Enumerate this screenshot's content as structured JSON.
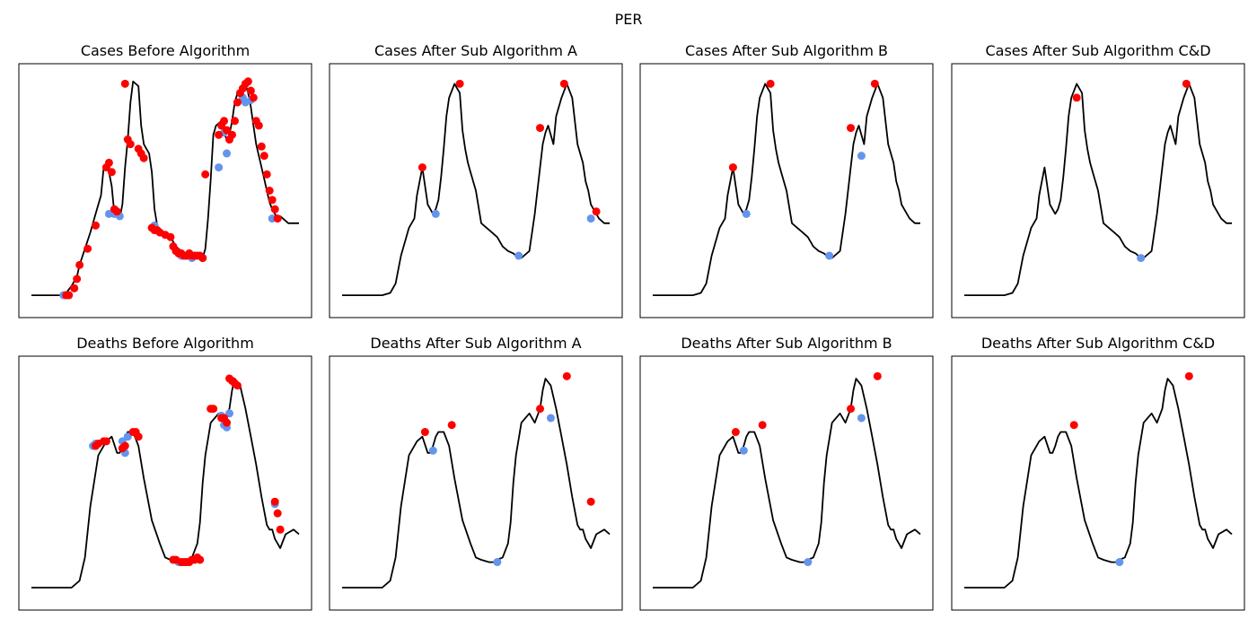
{
  "figure": {
    "suptitle": "PER"
  },
  "colors": {
    "line": "#000000",
    "minima": "#6495ed",
    "maxima": "#ff0000",
    "background": "#ffffff"
  },
  "chart_data": [
    {
      "type": "line",
      "title": "Cases Before Algorithm",
      "xlim": [
        0,
        100
      ],
      "ylim": [
        0,
        100
      ],
      "x": [
        0,
        10,
        12,
        13,
        15,
        17,
        18,
        20,
        22,
        24,
        26,
        27,
        28,
        29,
        30,
        31,
        32,
        33,
        34,
        35,
        36,
        37,
        38,
        40,
        41,
        42,
        43,
        44,
        45,
        46,
        47,
        48,
        50,
        52,
        53,
        54,
        55,
        56,
        57,
        58,
        59,
        60,
        61,
        62,
        63,
        64,
        65,
        66,
        67,
        68,
        69,
        70,
        71,
        72,
        73,
        74,
        75,
        76,
        77,
        78,
        79,
        80,
        81,
        82,
        83,
        84,
        85,
        86,
        87,
        88,
        89,
        90,
        91,
        92,
        93,
        94,
        95,
        96,
        97,
        98,
        99,
        100
      ],
      "y": [
        5,
        5,
        5,
        6,
        9,
        13,
        18,
        25,
        32,
        40,
        48,
        60,
        61,
        58,
        52,
        40,
        41,
        38,
        44,
        60,
        72,
        88,
        97,
        95,
        78,
        70,
        68,
        66,
        58,
        42,
        35,
        33,
        32,
        30,
        28,
        26,
        25,
        24,
        23,
        23,
        22,
        22,
        22,
        22,
        21,
        21,
        25,
        38,
        55,
        74,
        78,
        79,
        80,
        75,
        72,
        74,
        80,
        88,
        92,
        93,
        95,
        96,
        92,
        86,
        78,
        70,
        65,
        60,
        55,
        50,
        45,
        42,
        40,
        38,
        39,
        38,
        37,
        36,
        36,
        36,
        36,
        36
      ],
      "minima_x": [
        12,
        13,
        16,
        29,
        31,
        33,
        46,
        56,
        58,
        60,
        61,
        64,
        70,
        72,
        73,
        79,
        80,
        82,
        90
      ],
      "minima_y": [
        5,
        5,
        8,
        40,
        40,
        39,
        35,
        22,
        22,
        21,
        22,
        21,
        60,
        75,
        66,
        90,
        88,
        89,
        38
      ],
      "maxima_x": [
        13,
        14,
        16,
        17,
        18,
        21,
        24,
        28,
        29,
        30,
        31,
        32,
        35,
        36,
        37,
        40,
        41,
        42,
        45,
        46,
        47,
        48,
        50,
        52,
        53,
        54,
        55,
        56,
        57,
        58,
        59,
        60,
        61,
        62,
        63,
        64,
        65,
        70,
        71,
        72,
        73,
        74,
        75,
        76,
        77,
        78,
        79,
        80,
        81,
        82,
        83,
        84,
        85,
        86,
        87,
        88,
        89,
        90,
        91,
        92
      ],
      "maxima_y": [
        5,
        5,
        8,
        12,
        18,
        25,
        35,
        60,
        62,
        58,
        42,
        41,
        96,
        72,
        70,
        68,
        66,
        64,
        34,
        33,
        33,
        32,
        31,
        30,
        26,
        24,
        23,
        23,
        22,
        22,
        23,
        22,
        22,
        22,
        22,
        21,
        57,
        74,
        78,
        80,
        76,
        72,
        74,
        80,
        88,
        92,
        94,
        96,
        97,
        93,
        90,
        80,
        78,
        69,
        65,
        57,
        50,
        46,
        42,
        38
      ],
      "grid": false
    },
    {
      "type": "line",
      "title": "Cases After Sub Algorithm A",
      "xlim": [
        0,
        100
      ],
      "ylim": [
        0,
        100
      ],
      "x": [
        0,
        10,
        15,
        18,
        20,
        22,
        25,
        27,
        28,
        30,
        32,
        34,
        35,
        36,
        37,
        38,
        39,
        40,
        42,
        44,
        45,
        46,
        47,
        48,
        50,
        52,
        54,
        56,
        58,
        60,
        62,
        64,
        65,
        66,
        67,
        68,
        70,
        72,
        74,
        75,
        76,
        77,
        78,
        79,
        80,
        81,
        82,
        84,
        86,
        88,
        90,
        91,
        92,
        93,
        94,
        95,
        96,
        98,
        100
      ],
      "y": [
        5,
        5,
        5,
        6,
        10,
        22,
        34,
        38,
        48,
        60,
        44,
        40,
        42,
        46,
        56,
        68,
        82,
        90,
        96,
        92,
        76,
        68,
        62,
        58,
        50,
        36,
        34,
        32,
        30,
        26,
        24,
        23,
        22,
        22,
        21,
        22,
        24,
        40,
        60,
        70,
        75,
        78,
        74,
        70,
        82,
        86,
        90,
        96,
        90,
        70,
        62,
        54,
        50,
        44,
        42,
        40,
        38,
        36,
        36
      ],
      "minima_x": [
        35,
        66,
        93
      ],
      "minima_y": [
        40,
        22,
        38
      ],
      "maxima_x": [
        30,
        44,
        74,
        83,
        95
      ],
      "maxima_y": [
        60,
        96,
        77,
        96,
        41
      ],
      "grid": false
    },
    {
      "type": "line",
      "title": "Cases After Sub Algorithm B",
      "xlim": [
        0,
        100
      ],
      "ylim": [
        0,
        100
      ],
      "x": [
        0,
        10,
        15,
        18,
        20,
        22,
        25,
        27,
        28,
        30,
        32,
        34,
        35,
        36,
        37,
        38,
        39,
        40,
        42,
        44,
        45,
        46,
        47,
        48,
        50,
        52,
        54,
        56,
        58,
        60,
        62,
        64,
        65,
        66,
        67,
        68,
        70,
        72,
        74,
        75,
        76,
        77,
        78,
        79,
        80,
        81,
        82,
        84,
        86,
        88,
        90,
        91,
        92,
        93,
        94,
        95,
        96,
        98,
        100
      ],
      "y": [
        5,
        5,
        5,
        6,
        10,
        22,
        34,
        38,
        48,
        60,
        44,
        40,
        42,
        46,
        56,
        68,
        82,
        90,
        96,
        92,
        76,
        68,
        62,
        58,
        50,
        36,
        34,
        32,
        30,
        26,
        24,
        23,
        22,
        22,
        21,
        22,
        24,
        40,
        60,
        70,
        75,
        78,
        74,
        70,
        82,
        86,
        90,
        96,
        90,
        70,
        62,
        54,
        50,
        44,
        42,
        40,
        38,
        36,
        36
      ],
      "minima_x": [
        35,
        66,
        78
      ],
      "minima_y": [
        40,
        22,
        65
      ],
      "maxima_x": [
        30,
        44,
        74,
        83
      ],
      "maxima_y": [
        60,
        96,
        77,
        96
      ],
      "grid": false
    },
    {
      "type": "line",
      "title": "Cases After Sub Algorithm C&D",
      "xlim": [
        0,
        100
      ],
      "ylim": [
        0,
        100
      ],
      "x": [
        0,
        10,
        15,
        18,
        20,
        22,
        25,
        27,
        28,
        30,
        32,
        34,
        35,
        36,
        37,
        38,
        39,
        40,
        42,
        44,
        45,
        46,
        47,
        48,
        50,
        52,
        54,
        56,
        58,
        60,
        62,
        64,
        65,
        66,
        67,
        68,
        70,
        72,
        74,
        75,
        76,
        77,
        78,
        79,
        80,
        81,
        82,
        84,
        86,
        88,
        90,
        91,
        92,
        93,
        94,
        95,
        96,
        98,
        100
      ],
      "y": [
        5,
        5,
        5,
        6,
        10,
        22,
        34,
        38,
        48,
        60,
        44,
        40,
        42,
        46,
        56,
        68,
        82,
        90,
        96,
        92,
        76,
        68,
        62,
        58,
        50,
        36,
        34,
        32,
        30,
        26,
        24,
        23,
        22,
        22,
        21,
        22,
        24,
        40,
        60,
        70,
        75,
        78,
        74,
        70,
        82,
        86,
        90,
        96,
        90,
        70,
        62,
        54,
        50,
        44,
        42,
        40,
        38,
        36,
        36
      ],
      "minima_x": [
        66
      ],
      "minima_y": [
        21
      ],
      "maxima_x": [
        42,
        83
      ],
      "maxima_y": [
        90,
        96
      ],
      "grid": false
    },
    {
      "type": "line",
      "title": "Deaths Before Algorithm",
      "xlim": [
        0,
        100
      ],
      "ylim": [
        0,
        100
      ],
      "x": [
        0,
        10,
        15,
        18,
        20,
        22,
        25,
        28,
        30,
        32,
        33,
        34,
        35,
        36,
        38,
        40,
        42,
        45,
        48,
        50,
        52,
        55,
        57,
        58,
        60,
        62,
        63,
        64,
        65,
        67,
        70,
        72,
        74,
        75,
        76,
        78,
        80,
        82,
        84,
        86,
        88,
        89,
        90,
        91,
        92,
        93,
        95,
        98,
        100
      ],
      "y": [
        5,
        5,
        5,
        8,
        18,
        40,
        62,
        68,
        70,
        63,
        63,
        66,
        70,
        72,
        72,
        66,
        52,
        34,
        24,
        18,
        17,
        16,
        16,
        17,
        18,
        24,
        33,
        50,
        62,
        76,
        80,
        76,
        82,
        90,
        95,
        92,
        82,
        70,
        58,
        44,
        32,
        30,
        30,
        26,
        24,
        22,
        28,
        30,
        28
      ],
      "minima_x": [
        23,
        24,
        34,
        35,
        36,
        55,
        56,
        57,
        58,
        71,
        72,
        73,
        74,
        91
      ],
      "minima_y": [
        66,
        67,
        68,
        63,
        70,
        16,
        16,
        16,
        16,
        79,
        75,
        74,
        80,
        41
      ],
      "maxima_x": [
        24,
        25,
        27,
        28,
        34,
        35,
        38,
        39,
        40,
        53,
        54,
        56,
        57,
        58,
        59,
        60,
        61,
        62,
        63,
        67,
        68,
        71,
        72,
        73,
        74,
        75,
        76,
        77,
        91,
        92,
        93
      ],
      "maxima_y": [
        66,
        67,
        68,
        68,
        65,
        66,
        72,
        72,
        70,
        17,
        17,
        16,
        16,
        16,
        16,
        17,
        17,
        18,
        17,
        82,
        82,
        78,
        78,
        76,
        95,
        94,
        93,
        92,
        42,
        37,
        30
      ],
      "grid": false
    },
    {
      "type": "line",
      "title": "Deaths After Sub Algorithm A",
      "xlim": [
        0,
        100
      ],
      "ylim": [
        0,
        100
      ],
      "x": [
        0,
        10,
        15,
        18,
        20,
        22,
        25,
        28,
        30,
        32,
        33,
        34,
        35,
        36,
        38,
        40,
        42,
        45,
        48,
        50,
        52,
        55,
        57,
        58,
        60,
        62,
        63,
        64,
        65,
        67,
        70,
        72,
        74,
        75,
        76,
        78,
        80,
        82,
        84,
        86,
        88,
        89,
        90,
        91,
        92,
        93,
        95,
        98,
        100
      ],
      "y": [
        5,
        5,
        5,
        8,
        18,
        40,
        62,
        68,
        70,
        63,
        63,
        66,
        70,
        72,
        72,
        66,
        52,
        34,
        24,
        18,
        17,
        16,
        16,
        17,
        18,
        24,
        33,
        50,
        62,
        76,
        80,
        76,
        82,
        90,
        95,
        92,
        82,
        70,
        58,
        44,
        32,
        30,
        30,
        26,
        24,
        22,
        28,
        30,
        28
      ],
      "minima_x": [
        34,
        58,
        78
      ],
      "minima_y": [
        64,
        16,
        78
      ],
      "maxima_x": [
        31,
        41,
        74,
        84,
        93
      ],
      "maxima_y": [
        72,
        75,
        82,
        96,
        42
      ],
      "grid": false
    },
    {
      "type": "line",
      "title": "Deaths After Sub Algorithm B",
      "xlim": [
        0,
        100
      ],
      "ylim": [
        0,
        100
      ],
      "x": [
        0,
        10,
        15,
        18,
        20,
        22,
        25,
        28,
        30,
        32,
        33,
        34,
        35,
        36,
        38,
        40,
        42,
        45,
        48,
        50,
        52,
        55,
        57,
        58,
        60,
        62,
        63,
        64,
        65,
        67,
        70,
        72,
        74,
        75,
        76,
        78,
        80,
        82,
        84,
        86,
        88,
        89,
        90,
        91,
        92,
        93,
        95,
        98,
        100
      ],
      "y": [
        5,
        5,
        5,
        8,
        18,
        40,
        62,
        68,
        70,
        63,
        63,
        66,
        70,
        72,
        72,
        66,
        52,
        34,
        24,
        18,
        17,
        16,
        16,
        17,
        18,
        24,
        33,
        50,
        62,
        76,
        80,
        76,
        82,
        90,
        95,
        92,
        82,
        70,
        58,
        44,
        32,
        30,
        30,
        26,
        24,
        22,
        28,
        30,
        28
      ],
      "minima_x": [
        34,
        58,
        78
      ],
      "minima_y": [
        64,
        16,
        78
      ],
      "maxima_x": [
        31,
        41,
        74,
        84
      ],
      "maxima_y": [
        72,
        75,
        82,
        96
      ],
      "grid": false
    },
    {
      "type": "line",
      "title": "Deaths After Sub Algorithm C&D",
      "xlim": [
        0,
        100
      ],
      "ylim": [
        0,
        100
      ],
      "x": [
        0,
        10,
        15,
        18,
        20,
        22,
        25,
        28,
        30,
        32,
        33,
        34,
        35,
        36,
        38,
        40,
        42,
        45,
        48,
        50,
        52,
        55,
        57,
        58,
        60,
        62,
        63,
        64,
        65,
        67,
        70,
        72,
        74,
        75,
        76,
        78,
        80,
        82,
        84,
        86,
        88,
        89,
        90,
        91,
        92,
        93,
        95,
        98,
        100
      ],
      "y": [
        5,
        5,
        5,
        8,
        18,
        40,
        62,
        68,
        70,
        63,
        63,
        66,
        70,
        72,
        72,
        66,
        52,
        34,
        24,
        18,
        17,
        16,
        16,
        17,
        18,
        24,
        33,
        50,
        62,
        76,
        80,
        76,
        82,
        90,
        95,
        92,
        82,
        70,
        58,
        44,
        32,
        30,
        30,
        26,
        24,
        22,
        28,
        30,
        28
      ],
      "minima_x": [
        58
      ],
      "minima_y": [
        16
      ],
      "maxima_x": [
        41,
        84
      ],
      "maxima_y": [
        75,
        96
      ],
      "grid": false
    }
  ]
}
